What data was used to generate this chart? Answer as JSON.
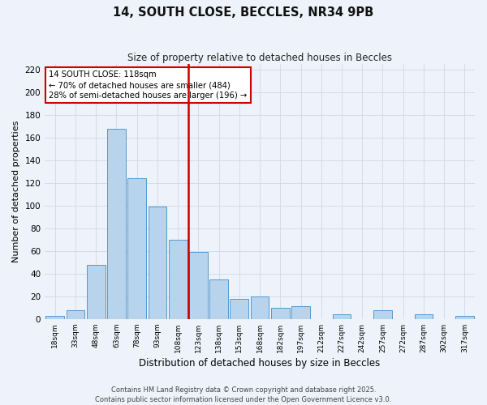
{
  "title": "14, SOUTH CLOSE, BECCLES, NR34 9PB",
  "subtitle": "Size of property relative to detached houses in Beccles",
  "xlabel": "Distribution of detached houses by size in Beccles",
  "ylabel": "Number of detached properties",
  "bar_labels": [
    "18sqm",
    "33sqm",
    "48sqm",
    "63sqm",
    "78sqm",
    "93sqm",
    "108sqm",
    "123sqm",
    "138sqm",
    "153sqm",
    "168sqm",
    "182sqm",
    "197sqm",
    "212sqm",
    "227sqm",
    "242sqm",
    "257sqm",
    "272sqm",
    "287sqm",
    "302sqm",
    "317sqm"
  ],
  "bar_values": [
    3,
    8,
    48,
    168,
    124,
    99,
    70,
    59,
    35,
    18,
    20,
    10,
    11,
    0,
    4,
    0,
    8,
    0,
    4,
    0,
    3
  ],
  "bar_color": "#b8d4ec",
  "bar_edge_color": "#5599cc",
  "vline_index": 7,
  "vline_color": "#cc0000",
  "annotation_text": "14 SOUTH CLOSE: 118sqm\n← 70% of detached houses are smaller (484)\n28% of semi-detached houses are larger (196) →",
  "annotation_box_facecolor": "#ffffff",
  "annotation_box_edgecolor": "#cc0000",
  "ylim": [
    0,
    225
  ],
  "yticks": [
    0,
    20,
    40,
    60,
    80,
    100,
    120,
    140,
    160,
    180,
    200,
    220
  ],
  "grid_color": "#d0d8e8",
  "background_color": "#eef2fa",
  "footer1": "Contains HM Land Registry data © Crown copyright and database right 2025.",
  "footer2": "Contains public sector information licensed under the Open Government Licence v3.0."
}
